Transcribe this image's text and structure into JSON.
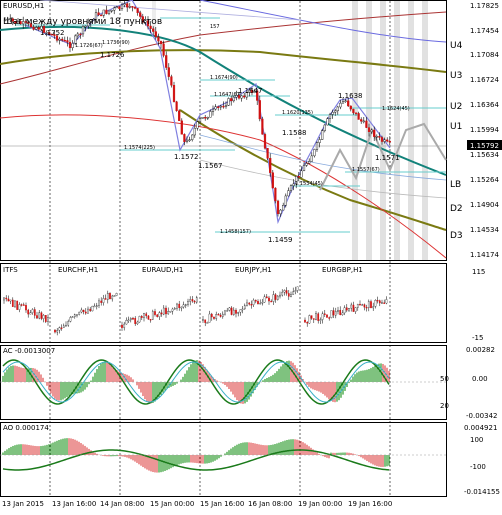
{
  "main": {
    "symbol": "EURUSD,H1",
    "subtitle": "Шаг между уровнями 18 пунктов",
    "current_price": "1.15792",
    "price_axis": [
      "1.17825",
      "1.17454",
      "1.17084",
      "1.16724",
      "1.16364",
      "1.15994",
      "1.15634",
      "1.15264",
      "1.14904",
      "1.14534",
      "1.14174"
    ],
    "level_labels": [
      "U4",
      "U3",
      "U2",
      "U1",
      "LB",
      "D1",
      "D2",
      "D3"
    ],
    "annotations": [
      "1.1752",
      "1.1726(67)",
      "1.1736(90)",
      "1.1726",
      "157",
      "1.1674(90)",
      "1.1647(67)",
      "1.1647",
      "1.1620(135)",
      "1.1588",
      "1.1574(225)",
      "1.1572",
      "1.1567",
      "1.1638",
      "1.1624(45)",
      "1.1571",
      "1.1557(67)",
      "1.1534(45)",
      "1.1458(157)",
      "1.1459"
    ]
  },
  "panel2": {
    "title": "ITFS",
    "symbols": [
      "EURCHF,H1",
      "EURAUD,H1",
      "EURJPY,H1",
      "EURGBP,H1"
    ],
    "axis": [
      "115",
      "-15"
    ]
  },
  "panel3": {
    "title": "AC -0.0013007",
    "axis": [
      "0.00282",
      "0.00",
      "-0.00342"
    ],
    "overlay_values": [
      "50",
      "20"
    ]
  },
  "panel4": {
    "title": "AO 0.000174",
    "axis": [
      "0.004921",
      "100",
      "-100",
      "-0.014155"
    ]
  },
  "time_axis": [
    "13 Jan 2015",
    "13 Jan 16:00",
    "14 Jan 08:00",
    "15 Jan 00:00",
    "15 Jan 16:00",
    "16 Jan 08:00",
    "19 Jan 00:00",
    "19 Jan 16:00"
  ]
}
